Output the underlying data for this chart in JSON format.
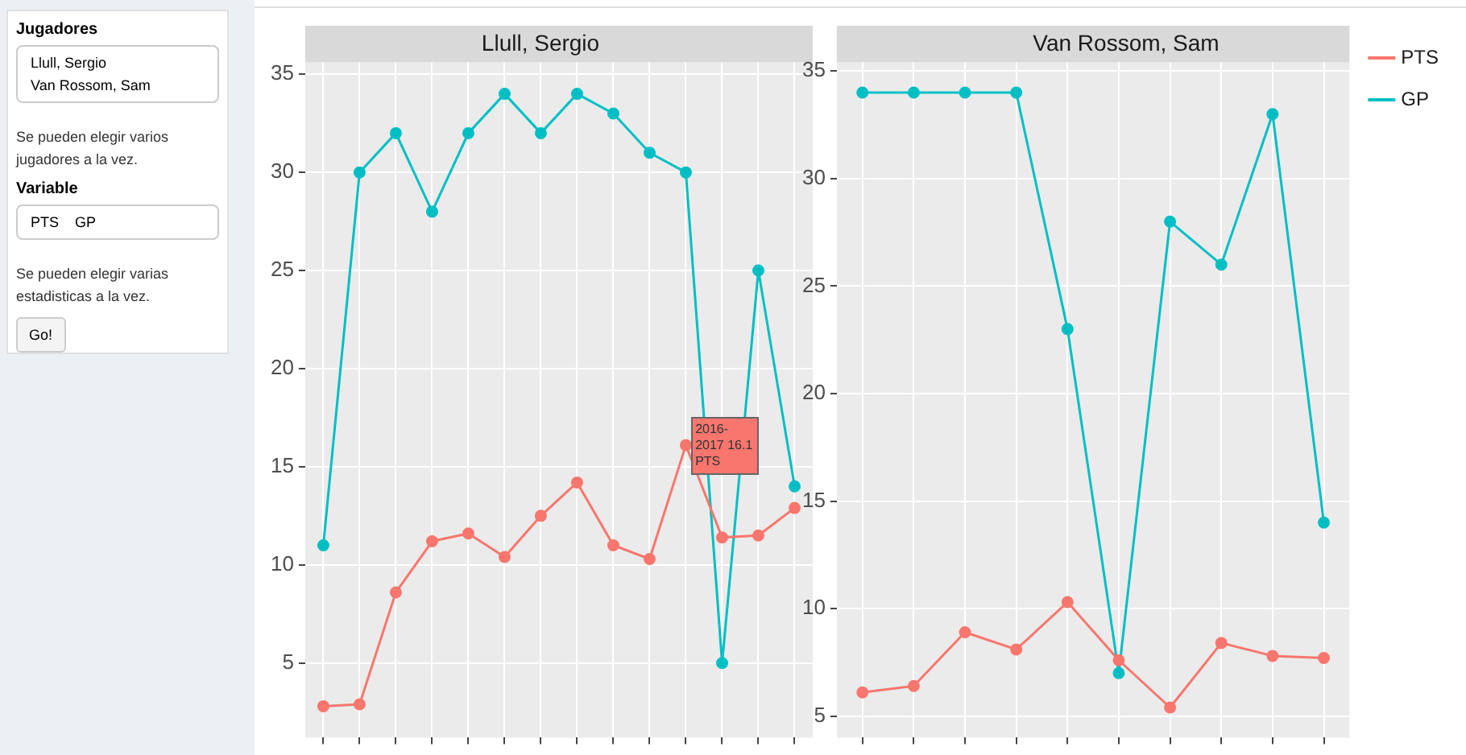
{
  "chart_data": [
    {
      "type": "other",
      "annotations": [
        "Jugadores",
        "Llull, Sergio",
        "Van Rossom, Sam",
        "Se pueden elegir varios jugadores a la vez.",
        "Variable",
        "PTS",
        "GP",
        "Se pueden elegir varias estadisticas a la vez.",
        "Go!"
      ]
    },
    {
      "type": "line",
      "title": "Llull, Sergio",
      "categories": [
        null,
        null,
        null,
        null,
        null,
        null,
        null,
        null,
        null,
        null,
        null,
        null,
        null,
        null
      ],
      "series": [
        {
          "color": "#f8766d",
          "values": [
            2.8,
            2.9,
            8.6,
            11.2,
            11.6,
            10.4,
            12.5,
            14.2,
            11.0,
            10.3,
            16.1,
            11.4,
            11.5,
            12.9
          ]
        },
        {
          "color": "#00bfc4",
          "values": [
            11,
            30,
            32,
            28,
            32,
            34,
            32,
            34,
            33,
            31,
            30,
            5,
            25,
            14
          ]
        }
      ],
      "ylim": [
        1.2,
        35.6
      ],
      "yticks": [
        5,
        10,
        15,
        20,
        25,
        30,
        35
      ],
      "grid": true,
      "tick_labels": "y",
      "marker": "circle",
      "legend": false,
      "annotations": [
        "2016-2017 16.1 PTS"
      ]
    },
    {
      "type": "line",
      "title": "Van Rossom, Sam",
      "categories": [
        null,
        null,
        null,
        null,
        null,
        null,
        null,
        null,
        null,
        null
      ],
      "series": [
        {
          "name": "PTS",
          "color": "#f8766d",
          "values": [
            6.1,
            6.4,
            8.9,
            8.1,
            10.3,
            7.6,
            5.4,
            8.4,
            7.8,
            7.7
          ]
        },
        {
          "name": "GP",
          "color": "#00bfc4",
          "values": [
            34,
            34,
            34,
            34,
            23,
            7,
            28,
            26,
            33,
            14
          ]
        }
      ],
      "ylim": [
        4.0,
        35.4
      ],
      "yticks": [
        5,
        10,
        15,
        20,
        25,
        30,
        35
      ],
      "grid": true,
      "tick_labels": "y",
      "marker": "circle",
      "legend": "right"
    }
  ]
}
